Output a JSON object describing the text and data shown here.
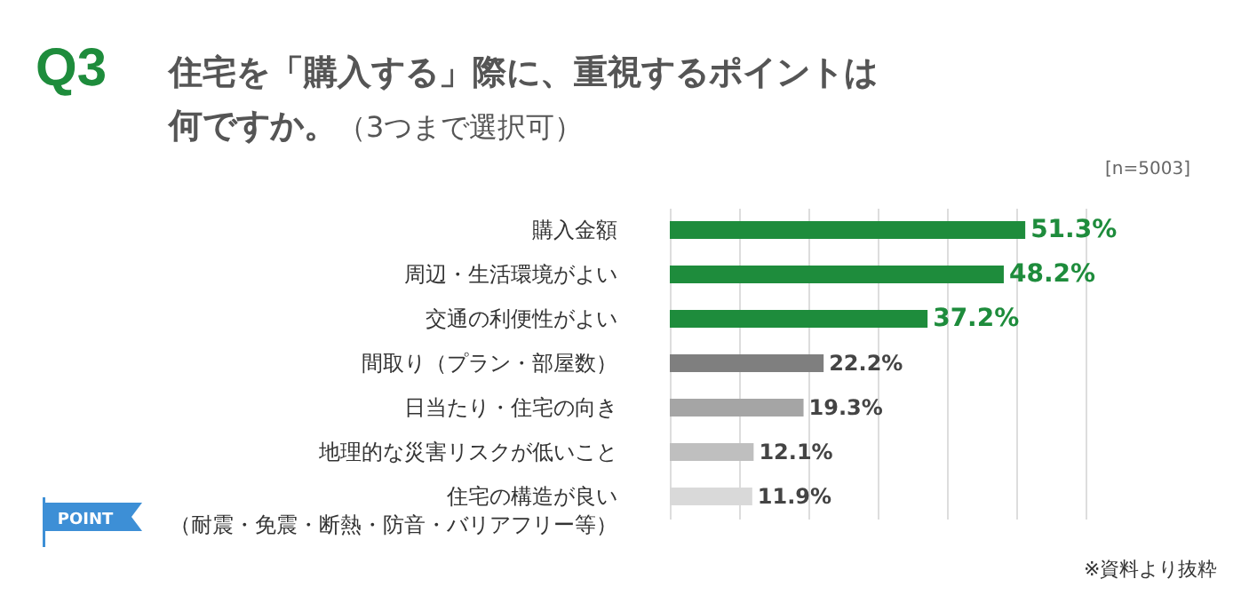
{
  "chart_data": {
    "type": "bar",
    "orientation": "horizontal",
    "title": "Q3",
    "subtitle": "住宅を「購入する」際に、重視するポイントは何ですか。（3つまで選択可）",
    "categories": [
      "購入金額",
      "周辺・生活環境がよい",
      "交通の利便性がよい",
      "間取り（プラン・部屋数）",
      "日当たり・住宅の向き",
      "地理的な災害リスクが低いこと",
      "住宅の構造が良い（耐震・免震・断熱・防音・バリアフリー等）"
    ],
    "values": [
      51.3,
      48.2,
      37.2,
      22.2,
      19.3,
      12.1,
      11.9
    ],
    "colors": [
      "#1e8c3c",
      "#1e8c3c",
      "#1e8c3c",
      "#7f7f7f",
      "#a5a5a5",
      "#bfbfbf",
      "#d9d9d9"
    ],
    "value_labels": [
      "51.3%",
      "48.2%",
      "37.2%",
      "22.2%",
      "19.3%",
      "12.1%",
      "11.9%"
    ],
    "xlim": [
      0,
      60
    ],
    "grid": "x",
    "tick_labels": "y",
    "annotations": [
      "[n=5003]",
      "※資料より抜粋",
      "POINT"
    ]
  }
}
